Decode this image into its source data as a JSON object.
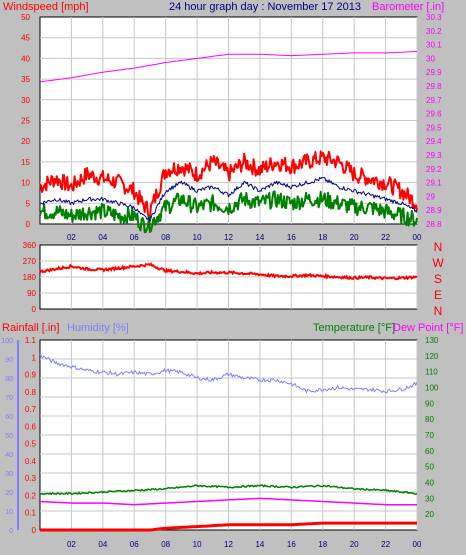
{
  "title": "24 hour graph day : November 17 2013",
  "colors": {
    "background": "#c0c0c0",
    "panel": "#ffffff",
    "grid": "#c8c8c8",
    "windspeed": "#ff0000",
    "windavg": "#000080",
    "windgust_low": "#008000",
    "barometer": "#ff00ff",
    "direction": "#ff0000",
    "rainfall": "#ff0000",
    "humidity": "#7f7fff",
    "temperature": "#008000",
    "dewpoint": "#ff00ff",
    "hour_labels": "#000080",
    "title": "#000080"
  },
  "chart_data": [
    {
      "type": "line",
      "name": "wind-barometer",
      "left_label": "Windspeed [mph]",
      "right_label": "Barometer [.in]",
      "x_ticks": [
        "02",
        "04",
        "06",
        "08",
        "10",
        "12",
        "14",
        "16",
        "18",
        "20",
        "22",
        "00"
      ],
      "x_range": [
        0,
        24
      ],
      "ylim_left": [
        0,
        50
      ],
      "yticks_left": [
        "0",
        "5",
        "10",
        "15",
        "20",
        "25",
        "30",
        "35",
        "40",
        "45",
        "50"
      ],
      "ylim_right": [
        28.8,
        30.3
      ],
      "yticks_right": [
        "28.8",
        "28.9",
        "29",
        "29.1",
        "29.2",
        "29.3",
        "29.4",
        "29.5",
        "29.6",
        "29.7",
        "29.8",
        "29.9",
        "30",
        "30.1",
        "30.2",
        "30.3"
      ],
      "series": [
        {
          "role": "wind_gust",
          "x": [
            0,
            1,
            2,
            3,
            4,
            5,
            6,
            6.5,
            7,
            8,
            9,
            10,
            11,
            12,
            13,
            14,
            15,
            16,
            17,
            18,
            19,
            20,
            21,
            22,
            23,
            24
          ],
          "values": [
            9,
            11,
            9,
            12,
            11,
            10,
            8,
            5,
            3,
            13,
            14,
            12,
            15,
            12,
            15,
            13,
            15,
            14,
            15,
            16,
            15,
            12,
            11,
            10,
            8,
            5
          ]
        },
        {
          "role": "wind_avg",
          "x": [
            0,
            1,
            2,
            3,
            4,
            5,
            6,
            6.5,
            7,
            8,
            9,
            10,
            11,
            12,
            13,
            14,
            15,
            16,
            17,
            18,
            19,
            20,
            21,
            22,
            23,
            24
          ],
          "values": [
            5,
            6,
            5,
            6,
            6,
            5,
            4,
            2,
            1,
            8,
            10,
            8,
            9,
            7,
            10,
            8,
            10,
            9,
            10,
            11,
            9,
            8,
            7,
            6,
            5,
            3
          ]
        },
        {
          "role": "wind_low",
          "x": [
            0,
            1,
            2,
            3,
            4,
            5,
            6,
            6.5,
            7,
            8,
            9,
            10,
            11,
            12,
            13,
            14,
            15,
            16,
            17,
            18,
            19,
            20,
            21,
            22,
            23,
            24
          ],
          "values": [
            3,
            3,
            2,
            3,
            3,
            2,
            2,
            0,
            0,
            4,
            6,
            4,
            5,
            4,
            6,
            5,
            6,
            5,
            6,
            6,
            5,
            4,
            4,
            3,
            2,
            1
          ]
        },
        {
          "role": "barometer",
          "x": [
            0,
            2,
            4,
            6,
            8,
            10,
            12,
            14,
            16,
            18,
            20,
            22,
            24
          ],
          "values": [
            29.83,
            29.86,
            29.9,
            29.93,
            29.97,
            30.0,
            30.03,
            30.03,
            30.02,
            30.03,
            30.04,
            30.04,
            30.05
          ]
        }
      ]
    },
    {
      "type": "line",
      "name": "wind-direction",
      "ylim": [
        0,
        360
      ],
      "yticks": [
        "0",
        "90",
        "180",
        "270",
        "360"
      ],
      "compass": [
        "N",
        "W",
        "S",
        "E",
        "N"
      ],
      "x": [
        0,
        1,
        2,
        3,
        4,
        5,
        6,
        7,
        8,
        9,
        10,
        11,
        12,
        13,
        14,
        15,
        16,
        17,
        18,
        19,
        20,
        21,
        22,
        23,
        24
      ],
      "values": [
        210,
        225,
        240,
        225,
        220,
        230,
        240,
        250,
        215,
        210,
        200,
        205,
        205,
        200,
        195,
        185,
        185,
        190,
        185,
        180,
        175,
        178,
        172,
        175,
        180
      ]
    },
    {
      "type": "line",
      "name": "rain-humidity-temperature",
      "left_label1": "Rainfall [.in]",
      "left_label2": "Humidity [%]",
      "right_label1": "Temperature [°F]",
      "right_label2": "Dew Point [°F]",
      "x_ticks": [
        "02",
        "04",
        "06",
        "08",
        "10",
        "12",
        "14",
        "16",
        "18",
        "20",
        "22",
        "00"
      ],
      "rain_ylim": [
        0,
        1.1
      ],
      "rain_yticks": [
        "0",
        "0.1",
        "0.2",
        "0.3",
        "0.4",
        "0.5",
        "0.6",
        "0.7",
        "0.8",
        "0.9",
        "1",
        "1.1"
      ],
      "humidity_ylim": [
        0,
        100
      ],
      "humidity_yticks": [
        "0",
        "10",
        "20",
        "30",
        "40",
        "50",
        "60",
        "70",
        "80",
        "90",
        "100"
      ],
      "temp_ylim": [
        10,
        130
      ],
      "temp_yticks": [
        "20",
        "30",
        "40",
        "50",
        "60",
        "70",
        "80",
        "90",
        "100",
        "110",
        "120",
        "130"
      ],
      "series": [
        {
          "role": "humidity",
          "x": [
            0,
            1,
            2,
            3,
            4,
            5,
            6,
            7,
            8,
            9,
            10,
            11,
            12,
            13,
            14,
            15,
            16,
            17,
            18,
            19,
            20,
            21,
            22,
            23,
            24
          ],
          "values": [
            92,
            88,
            86,
            84,
            83,
            82,
            83,
            82,
            84,
            83,
            80,
            79,
            82,
            80,
            79,
            79,
            77,
            73,
            74,
            75,
            74,
            74,
            73,
            74,
            77
          ]
        },
        {
          "role": "temperature",
          "x": [
            0,
            2,
            4,
            6,
            8,
            10,
            12,
            14,
            16,
            18,
            20,
            22,
            24
          ],
          "values": [
            33,
            33,
            34,
            35,
            36,
            38,
            37,
            38,
            37,
            38,
            36,
            35,
            33
          ]
        },
        {
          "role": "dewpoint",
          "x": [
            0,
            2,
            4,
            6,
            8,
            10,
            12,
            14,
            16,
            18,
            20,
            22,
            24
          ],
          "values": [
            28,
            27,
            27,
            26,
            27,
            28,
            29,
            30,
            29,
            28,
            27,
            26,
            26
          ]
        },
        {
          "role": "rainfall",
          "x": [
            0,
            4,
            7,
            8,
            10,
            12,
            14,
            16,
            18,
            20,
            22,
            24
          ],
          "values": [
            0,
            0,
            0,
            0.01,
            0.02,
            0.03,
            0.03,
            0.03,
            0.04,
            0.04,
            0.04,
            0.04
          ]
        }
      ]
    }
  ]
}
